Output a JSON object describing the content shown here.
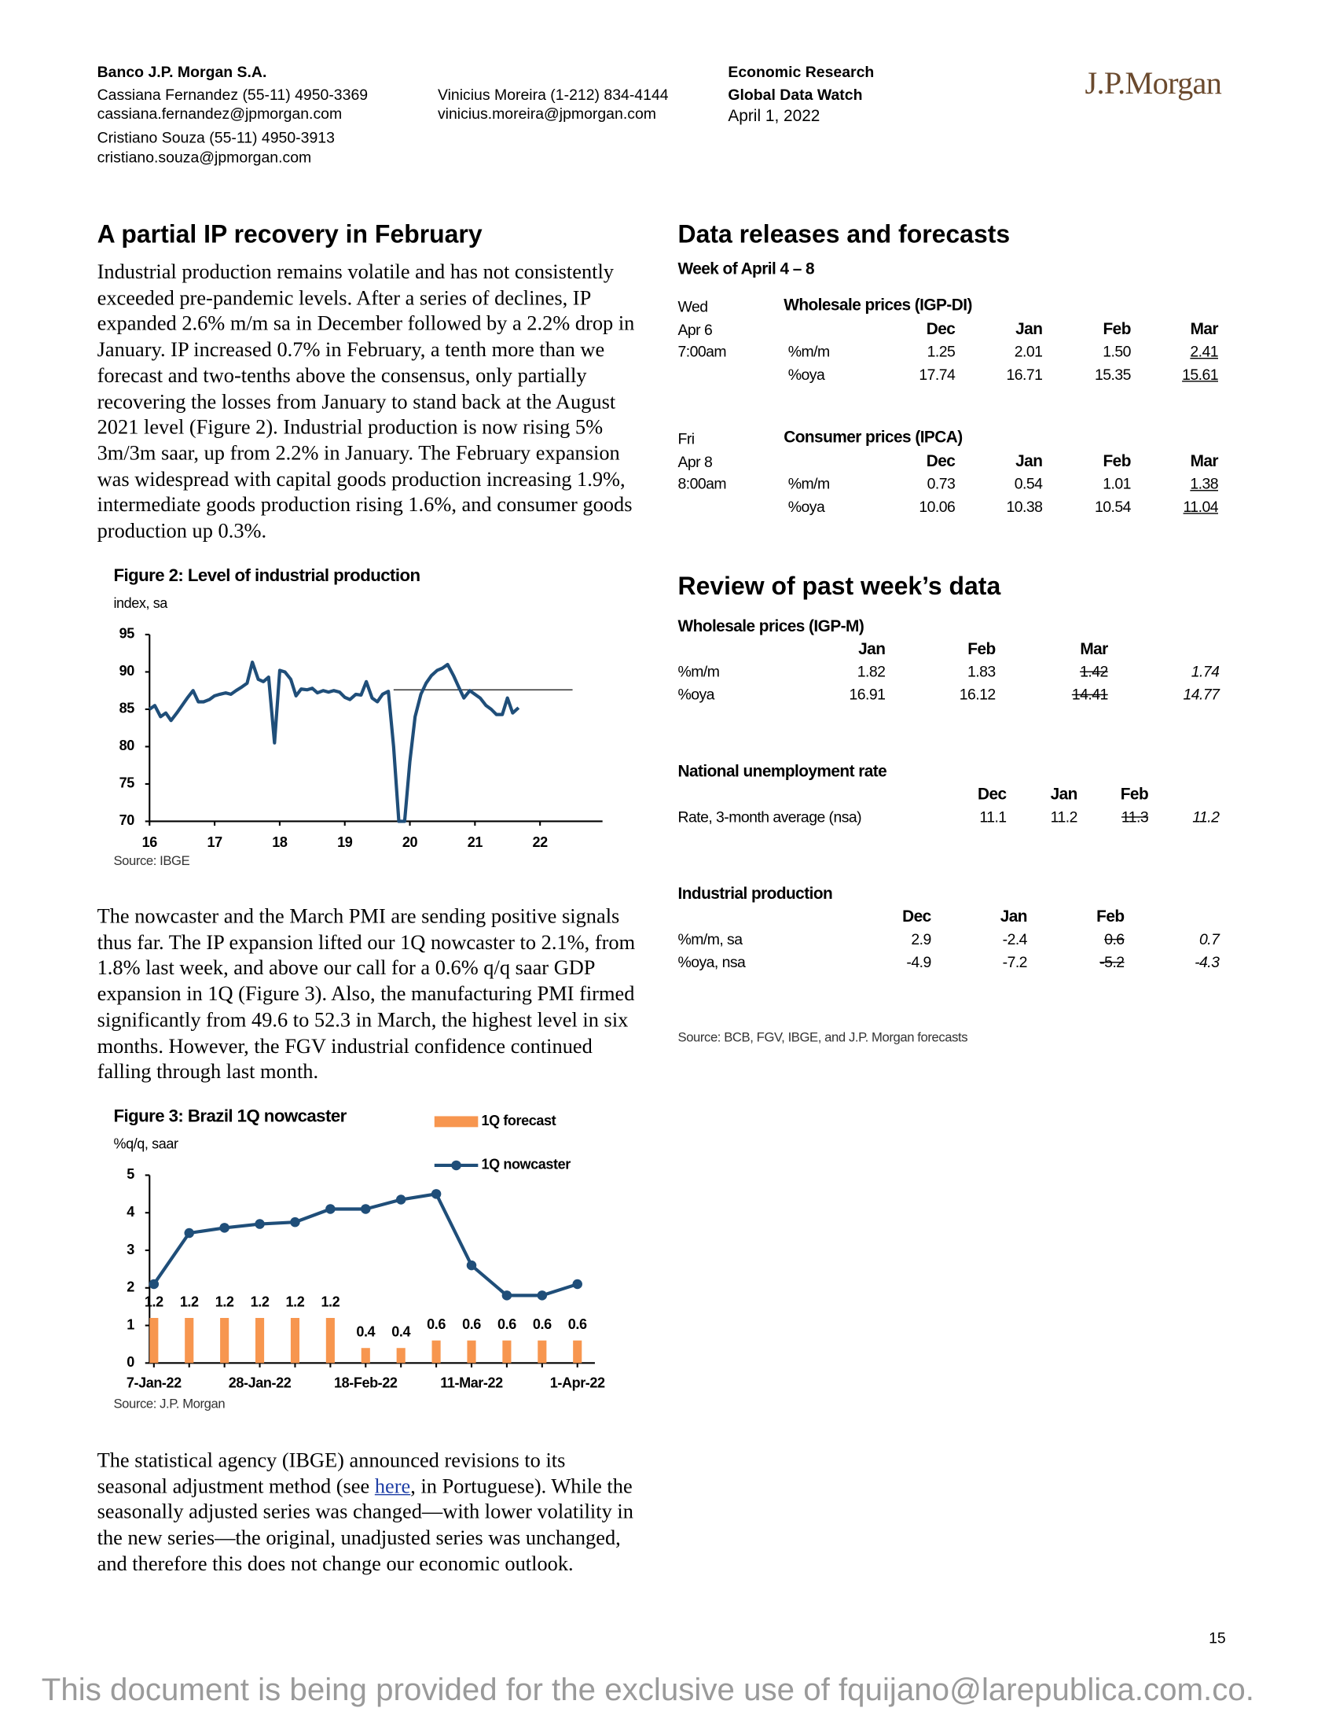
{
  "header": {
    "bank": "Banco J.P. Morgan S.A.",
    "authors": [
      {
        "line": "Cassiana Fernandez (55-11) 4950-3369",
        "email": "cassiana.fernandez@jpmorgan.com"
      },
      {
        "line": "Vinicius Moreira (1-212) 834-4144",
        "email": "vinicius.moreira@jpmorgan.com"
      },
      {
        "line": "Cristiano Souza (55-11) 4950-3913",
        "email": "cristiano.souza@jpmorgan.com"
      }
    ],
    "department": "Economic Research",
    "publication": "Global Data Watch",
    "date": "April 1, 2022",
    "logo": "J.P.Morgan"
  },
  "article": {
    "title": "A partial IP recovery in February",
    "paragraph_1": "Industrial production remains volatile and has not consistently exceeded pre-pandemic levels. After a series of declines, IP expanded 2.6% m/m sa in December followed by a 2.2% drop in January. IP increased 0.7% in February, a tenth more than we forecast and two-tenths above the consensus, only partially recovering the losses from January to stand back at the August 2021 level (Figure 2). Industrial production is now rising 5% 3m/3m saar, up from 2.2% in January. The February expansion was widespread with capital goods production increasing 1.9%, intermediate goods production rising 1.6%, and consumer goods production up 0.3%.",
    "paragraph_2": "The nowcaster and the March PMI are sending positive signals thus far. The IP expansion lifted our 1Q nowcaster to 2.1%, from 1.8% last week, and above our call for a 0.6% q/q saar GDP expansion in 1Q (Figure 3). Also, the manufacturing PMI firmed significantly from 49.6 to 52.3 in March, the highest level in six months. However, the FGV industrial confidence continued falling through last month.",
    "paragraph_3": {
      "before": "The statistical agency (IBGE) announced revisions to its seasonal adjustment method (see ",
      "link": "here",
      "after": ", in Portuguese). While the seasonally adjusted series was changed—with lower volatility in the new series—the original, unadjusted series was unchanged, and therefore this does not change our economic outlook."
    }
  },
  "chart_data": [
    {
      "type": "line",
      "title": "Figure 2: Level of industrial production",
      "subtitle": "index, sa",
      "source": "Source: IBGE",
      "color": "#1f4e79",
      "grid": false,
      "x": [
        16,
        16.08,
        16.17,
        16.25,
        16.33,
        16.42,
        16.5,
        16.58,
        16.67,
        16.75,
        16.83,
        16.92,
        17,
        17.08,
        17.17,
        17.25,
        17.33,
        17.42,
        17.5,
        17.58,
        17.67,
        17.75,
        17.83,
        17.92,
        18,
        18.08,
        18.17,
        18.25,
        18.33,
        18.42,
        18.5,
        18.58,
        18.67,
        18.75,
        18.83,
        18.92,
        19,
        19.08,
        19.17,
        19.25,
        19.33,
        19.42,
        19.5,
        19.58,
        19.67,
        19.75,
        19.83,
        19.92,
        20,
        20.08,
        20.17,
        20.25,
        20.33,
        20.42,
        20.5,
        20.58,
        20.67,
        20.75,
        20.83,
        20.92,
        21,
        21.08,
        21.17,
        21.25,
        21.33,
        21.42,
        21.5,
        21.58,
        21.67
      ],
      "values": [
        85,
        85.5,
        84,
        84.5,
        83.5,
        84.5,
        85.5,
        86.5,
        87.5,
        86,
        86,
        86.3,
        86.8,
        87,
        87.2,
        87,
        87.5,
        88,
        88.5,
        91.3,
        89,
        88.7,
        89.3,
        80.5,
        90.2,
        90,
        89,
        86.8,
        87.7,
        87.6,
        87.8,
        87.2,
        87.5,
        87.3,
        87.5,
        87.3,
        86.6,
        86.3,
        87,
        86.9,
        88.7,
        86.5,
        86,
        87,
        87.4,
        80,
        70,
        70,
        78,
        84,
        87,
        88.5,
        89.5,
        90.2,
        90.5,
        91,
        89.5,
        88,
        86.5,
        87.5,
        87,
        86.5,
        85.5,
        85,
        84.3,
        84.3,
        86.5,
        84.5,
        85.2
      ],
      "reference_line": {
        "y": 87.6,
        "x": [
          19.75,
          22.5
        ],
        "color": "#333333"
      },
      "xlim": [
        16,
        22.96
      ],
      "xticks": [
        16,
        17,
        18,
        19,
        20,
        21,
        22
      ],
      "ylim": [
        70,
        95
      ],
      "yticks": [
        70,
        75,
        80,
        85,
        90,
        95
      ]
    },
    {
      "type": "bar",
      "title": "Figure 3: Brazil 1Q nowcaster",
      "subtitle": "%q/q, saar",
      "source": "Source: J.P. Morgan",
      "legend": "top-right",
      "grid": false,
      "categories": [
        "7-Jan-22",
        null,
        null,
        "28-Jan-22",
        null,
        null,
        "18-Feb-22",
        null,
        null,
        "11-Mar-22",
        null,
        null,
        "1-Apr-22"
      ],
      "series": [
        {
          "name": "1Q forecast",
          "type": "bar",
          "color": "#f7964f",
          "values": [
            1.2,
            1.2,
            1.2,
            1.2,
            1.2,
            1.2,
            0.4,
            0.4,
            0.6,
            0.6,
            0.6,
            0.6,
            0.6
          ]
        },
        {
          "name": "1Q nowcaster",
          "type": "line",
          "color": "#1f4e79",
          "values": [
            2.1,
            3.46,
            3.6,
            3.7,
            3.75,
            4.1,
            4.1,
            4.35,
            4.5,
            2.6,
            1.8,
            1.8,
            2.1
          ]
        }
      ],
      "ylim": [
        0,
        5
      ],
      "yticks": [
        0,
        1,
        2,
        3,
        4,
        5
      ]
    }
  ],
  "releases": {
    "title": "Data releases and forecasts",
    "week": "Week of April 4 – 8",
    "blocks": [
      {
        "day": "Wed",
        "date": "Apr 6",
        "time": "7:00am",
        "title": "Wholesale prices (IGP-DI)",
        "columns": [
          "Dec",
          "Jan",
          "Feb",
          "Mar"
        ],
        "rows": [
          [
            "%m/m",
            "1.25",
            "2.01",
            "1.50",
            "2.41"
          ],
          [
            "%oya",
            "17.74",
            "16.71",
            "15.35",
            "15.61"
          ]
        ]
      },
      {
        "day": "Fri",
        "date": "Apr 8",
        "time": "8:00am",
        "title": "Consumer prices (IPCA)",
        "columns": [
          "Dec",
          "Jan",
          "Feb",
          "Mar"
        ],
        "rows": [
          [
            "%m/m",
            "0.73",
            "0.54",
            "1.01",
            "1.38"
          ],
          [
            "%oya",
            "10.06",
            "10.38",
            "10.54",
            "11.04"
          ]
        ]
      }
    ]
  },
  "review": {
    "title": "Review of past week’s data",
    "tables": [
      {
        "title": "Wholesale prices (IGP-M)",
        "columns": [
          "Jan",
          "Feb",
          "Mar"
        ],
        "rows": [
          [
            "%m/m",
            "1.82",
            "1.83",
            "1.42",
            "1.74"
          ],
          [
            "%oya",
            "16.91",
            "16.12",
            "14.41",
            "14.77"
          ]
        ]
      },
      {
        "title": "National unemployment rate",
        "columns": [
          "Dec",
          "Jan",
          "Feb"
        ],
        "rows": [
          [
            "Rate, 3-month average (nsa)",
            "11.1",
            "11.2",
            "11.3",
            "11.2"
          ]
        ]
      },
      {
        "title": "Industrial production",
        "columns": [
          "Dec",
          "Jan",
          "Feb"
        ],
        "rows": [
          [
            "%m/m, sa",
            "2.9",
            "-2.4",
            "0.6",
            "0.7"
          ],
          [
            "%oya, nsa",
            "-4.9",
            "-7.2",
            "-5.2",
            "-4.3"
          ]
        ]
      }
    ],
    "source": "Source: BCB, FGV, IBGE, and J.P. Morgan forecasts"
  },
  "footer": {
    "page": 15,
    "notice": "This document is being provided for the exclusive use of fquijano@larepublica.com.co."
  }
}
